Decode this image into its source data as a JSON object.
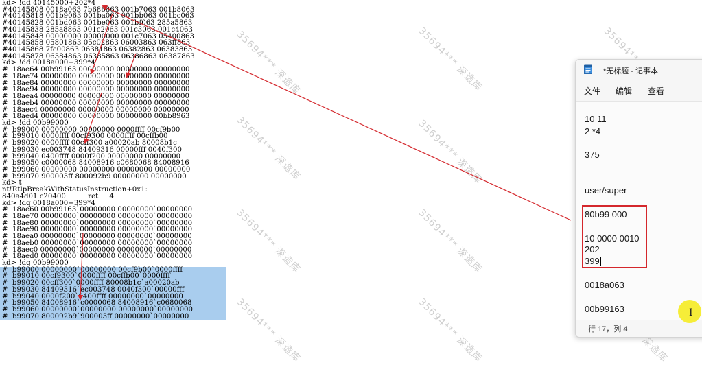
{
  "console": {
    "lines": [
      {
        "text": "kd> !dd 40145000+202*4",
        "selected": false
      },
      {
        "text": "#40145808 0018a063 7b686863 001b7063 001b8063",
        "selected": false
      },
      {
        "text": "#40145818 001b9063 001ba063 001bb063 001bc063",
        "selected": false
      },
      {
        "text": "#40145828 001bd063 001be063 001bf063 285a5863",
        "selected": false
      },
      {
        "text": "#40145838 285a8863 001c2063 001c3063 001c4063",
        "selected": false
      },
      {
        "text": "#40145848 00000000 00000000 001c7063 05400863",
        "selected": false
      },
      {
        "text": "#40145858 05801863 05c02863 06003863 063ff863",
        "selected": false
      },
      {
        "text": "#40145868 7fc00863 06381863 06382863 06383863",
        "selected": false
      },
      {
        "text": "#40145878 06384863 06385863 06386863 06387863",
        "selected": false
      },
      {
        "text": "kd> !dd 0018a000+399*4",
        "selected": false
      },
      {
        "text": "#  18ae64 00b99163 00000000 00000000 00000000",
        "selected": false
      },
      {
        "text": "#  18ae74 00000000 00000000 00000000 00000000",
        "selected": false
      },
      {
        "text": "#  18ae84 00000000 00000000 00000000 00000000",
        "selected": false
      },
      {
        "text": "#  18ae94 00000000 00000000 00000000 00000000",
        "selected": false
      },
      {
        "text": "#  18aea4 00000000 00000000 00000000 00000000",
        "selected": false
      },
      {
        "text": "#  18aeb4 00000000 00000000 00000000 00000000",
        "selected": false
      },
      {
        "text": "#  18aec4 00000000 00000000 00000000 00000000",
        "selected": false
      },
      {
        "text": "#  18aed4 00000000 00000000 00000000 00bb8963",
        "selected": false
      },
      {
        "text": "kd> !dd 00b99000",
        "selected": false
      },
      {
        "text": "#  b99000 00000000 00000000 0000ffff 00cf9b00",
        "selected": false
      },
      {
        "text": "#  b99010 0000ffff 00cf9300 0000ffff 00cffb00",
        "selected": false
      },
      {
        "text": "#  b99020 0000ffff 00cff300 a00020ab 80008b1c",
        "selected": false
      },
      {
        "text": "#  b99030 ec003748 84409316 00000fff 0040f300",
        "selected": false
      },
      {
        "text": "#  b99040 0400ffff 0000f200 00000000 00000000",
        "selected": false
      },
      {
        "text": "#  b99050 c0000068 84008916 c0680068 84008916",
        "selected": false
      },
      {
        "text": "#  b99060 00000000 00000000 00000000 00000000",
        "selected": false
      },
      {
        "text": "#  b99070 900003ff 800092b9 00000000 00000000",
        "selected": false
      },
      {
        "text": "kd> t",
        "selected": false
      },
      {
        "text": "nt!RtlpBreakWithStatusInstruction+0x1:",
        "selected": false
      },
      {
        "text": "840a4d01 c20400          ret     4",
        "selected": false
      },
      {
        "text": "kd> !dq 0018a000+399*4",
        "selected": false
      },
      {
        "text": "#  18ae60 00b99163`00000000 00000000`00000000",
        "selected": false
      },
      {
        "text": "#  18ae70 00000000`00000000 00000000`00000000",
        "selected": false
      },
      {
        "text": "#  18ae80 00000000`00000000 00000000`00000000",
        "selected": false
      },
      {
        "text": "#  18ae90 00000000`00000000 00000000`00000000",
        "selected": false
      },
      {
        "text": "#  18aea0 00000000`00000000 00000000`00000000",
        "selected": false
      },
      {
        "text": "#  18aeb0 00000000`00000000 00000000`00000000",
        "selected": false
      },
      {
        "text": "#  18aec0 00000000`00000000 00000000`00000000",
        "selected": false
      },
      {
        "text": "#  18aed0 00000000`00000000 00000000`00000000",
        "selected": false
      },
      {
        "text": "kd> !dq 00b99000",
        "selected": false
      },
      {
        "text": "#  b99000 00000000`00000000 00cf9b00`0000ffff",
        "selected": true
      },
      {
        "text": "#  b99010 00cf9300`0000ffff 00cffb00`0000ffff",
        "selected": true
      },
      {
        "text": "#  b99020 00cff300`0000ffff 80008b1c`a00020ab",
        "selected": true
      },
      {
        "text": "#  b99030 84409316`ec003748 0040f300`00000fff",
        "selected": true
      },
      {
        "text": "#  b99040 0000f200`0400ffff 00000000`00000000",
        "selected": true
      },
      {
        "text": "#  b99050 84008916`c0000068 84008916`c0680068",
        "selected": true
      },
      {
        "text": "#  b99060 00000000`00000000 00000000`00000000",
        "selected": true
      },
      {
        "text": "#  b99070 800092b9`900003ff 00000000`00000000",
        "selected": true
      }
    ]
  },
  "watermark": {
    "text": "35694***  深造库",
    "color": "#cfcfcf"
  },
  "notepad": {
    "title": "*无标题 - 记事本",
    "menu": [
      "文件",
      "编辑",
      "查看"
    ],
    "content_lines": [
      "10 11",
      "2 *4",
      "375",
      "user/super",
      "80b99 000",
      "10 0000 0010",
      "202",
      "399",
      "0018a063",
      "00b99163"
    ],
    "status": "行 17，列 4"
  },
  "colors": {
    "selection": "#a9cdee",
    "annotation_red": "#d4272c",
    "cursor_highlight": "#f6ec2d"
  }
}
